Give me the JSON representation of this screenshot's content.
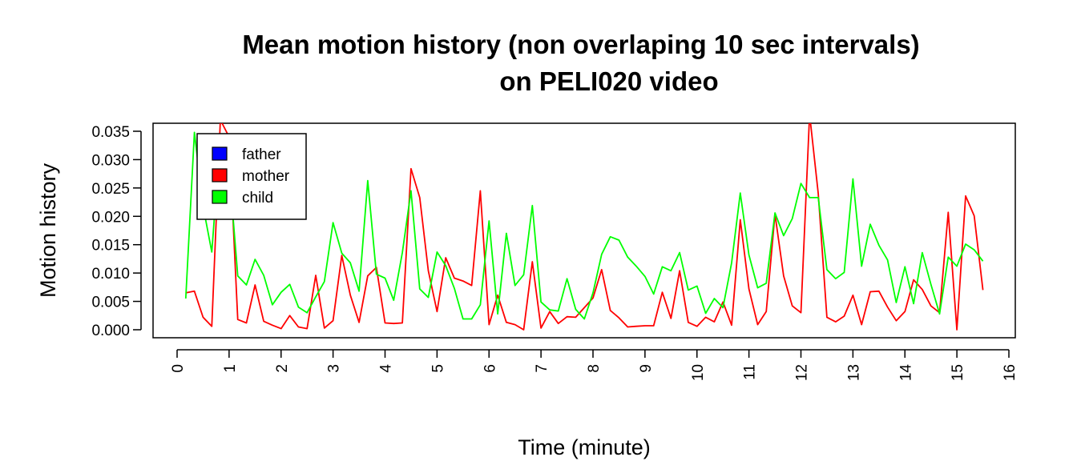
{
  "chart_data": {
    "type": "line",
    "title_line1": "Mean motion history (non overlaping 10 sec intervals)",
    "title_line2": "on PELI020 video",
    "xlabel": "Time (minute)",
    "ylabel": "Motion history",
    "xlim": [
      0,
      16
    ],
    "ylim": [
      0,
      0.035
    ],
    "x_ticks": [
      "0",
      "1",
      "2",
      "3",
      "4",
      "5",
      "6",
      "7",
      "8",
      "9",
      "10",
      "11",
      "12",
      "13",
      "14",
      "15",
      "16"
    ],
    "y_ticks": [
      "0.000",
      "0.005",
      "0.010",
      "0.015",
      "0.020",
      "0.025",
      "0.030",
      "0.035"
    ],
    "legend_position": "top-left",
    "legend": [
      {
        "name": "father",
        "color": "#0000ff"
      },
      {
        "name": "mother",
        "color": "#ff0000"
      },
      {
        "name": "child",
        "color": "#00ff00"
      }
    ],
    "x": [
      0.167,
      0.333,
      0.5,
      0.667,
      0.833,
      1.0,
      1.167,
      1.333,
      1.5,
      1.667,
      1.833,
      2.0,
      2.167,
      2.333,
      2.5,
      2.667,
      2.833,
      3.0,
      3.167,
      3.333,
      3.5,
      3.667,
      3.833,
      4.0,
      4.167,
      4.333,
      4.5,
      4.667,
      4.833,
      5.0,
      5.167,
      5.333,
      5.5,
      5.667,
      5.833,
      6.0,
      6.167,
      6.333,
      6.5,
      6.667,
      6.833,
      7.0,
      7.167,
      7.333,
      7.5,
      7.667,
      7.833,
      8.0,
      8.167,
      8.333,
      8.5,
      8.667,
      8.833,
      9.0,
      9.167,
      9.333,
      9.5,
      9.667,
      9.833,
      10.0,
      10.167,
      10.333,
      10.5,
      10.667,
      10.833,
      11.0,
      11.167,
      11.333,
      11.5,
      11.667,
      11.833,
      12.0,
      12.167,
      12.333,
      12.5,
      12.667,
      12.833,
      13.0,
      13.167,
      13.333,
      13.5,
      13.667,
      13.833,
      14.0,
      14.167,
      14.333,
      14.5,
      14.667,
      14.833,
      15.0,
      15.167,
      15.333,
      15.5
    ],
    "series": [
      {
        "name": "mother",
        "color": "#ff0000",
        "values": [
          0.0065,
          0.0068,
          0.0022,
          0.0006,
          0.037,
          0.034,
          0.0018,
          0.0012,
          0.0079,
          0.0015,
          0.0008,
          0.0002,
          0.0025,
          0.0005,
          0.0002,
          0.0096,
          0.0003,
          0.0016,
          0.0131,
          0.0061,
          0.0013,
          0.0095,
          0.011,
          0.0012,
          0.0011,
          0.0012,
          0.0284,
          0.0233,
          0.0104,
          0.0032,
          0.0127,
          0.0091,
          0.0086,
          0.0078,
          0.0245,
          0.0009,
          0.0061,
          0.0013,
          0.0009,
          0.0,
          0.012,
          0.0003,
          0.0032,
          0.0011,
          0.0023,
          0.0022,
          0.0039,
          0.0056,
          0.0106,
          0.0034,
          0.0021,
          0.0005,
          0.0006,
          0.0007,
          0.0007,
          0.0066,
          0.002,
          0.0104,
          0.0013,
          0.0006,
          0.0022,
          0.0014,
          0.0049,
          0.0008,
          0.0194,
          0.0072,
          0.0009,
          0.0032,
          0.0204,
          0.0095,
          0.0042,
          0.003,
          0.038,
          0.024,
          0.0022,
          0.0014,
          0.0024,
          0.0061,
          0.0009,
          0.0067,
          0.0068,
          0.004,
          0.0016,
          0.0032,
          0.0088,
          0.0071,
          0.0042,
          0.003,
          0.0207,
          0.0,
          0.0236,
          0.0201,
          0.007
        ]
      },
      {
        "name": "child",
        "color": "#00ff00",
        "values": [
          0.0055,
          0.0348,
          0.0218,
          0.0137,
          0.034,
          0.0285,
          0.0095,
          0.0079,
          0.0124,
          0.0096,
          0.0044,
          0.0066,
          0.008,
          0.004,
          0.003,
          0.0058,
          0.0085,
          0.0189,
          0.0135,
          0.0118,
          0.0068,
          0.0263,
          0.0098,
          0.0091,
          0.0052,
          0.0136,
          0.0245,
          0.0072,
          0.0057,
          0.0137,
          0.0113,
          0.0073,
          0.0019,
          0.0019,
          0.0044,
          0.0192,
          0.0028,
          0.017,
          0.0078,
          0.0097,
          0.0219,
          0.0049,
          0.0035,
          0.0033,
          0.009,
          0.0036,
          0.0019,
          0.0065,
          0.0133,
          0.0164,
          0.0158,
          0.0128,
          0.0112,
          0.0094,
          0.0063,
          0.0111,
          0.0104,
          0.0136,
          0.007,
          0.0077,
          0.0029,
          0.0055,
          0.0039,
          0.0118,
          0.0241,
          0.0132,
          0.0074,
          0.0082,
          0.0206,
          0.0166,
          0.0196,
          0.0258,
          0.0233,
          0.0233,
          0.0106,
          0.009,
          0.0101,
          0.0266,
          0.0112,
          0.0186,
          0.0149,
          0.0123,
          0.0048,
          0.0111,
          0.0046,
          0.0136,
          0.008,
          0.0028,
          0.0128,
          0.0112,
          0.0151,
          0.0141,
          0.0121
        ]
      }
    ]
  }
}
